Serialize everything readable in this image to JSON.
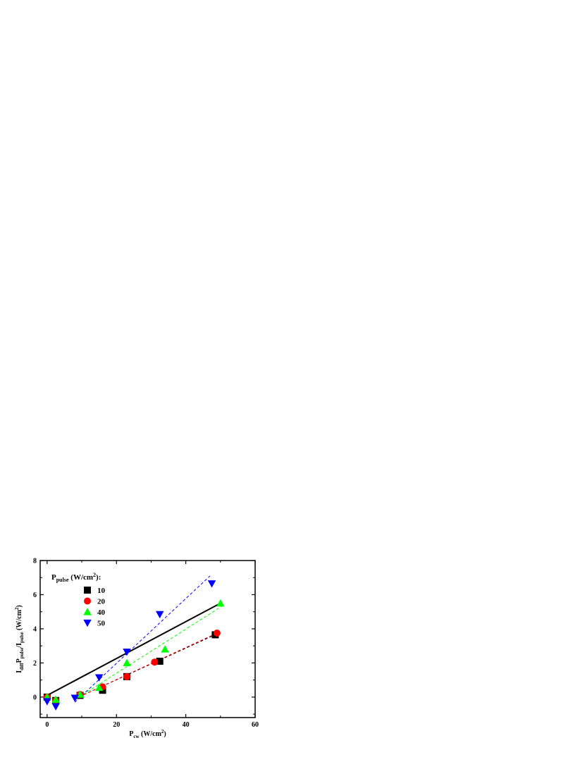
{
  "chart_data": {
    "type": "scatter",
    "xlabel": {
      "main": "P",
      "sub": "cw",
      "unit_prefix": " (W/cm",
      "sup": "2",
      "unit_suffix": ")"
    },
    "ylabel": {
      "p1": "I",
      "s1": "diff",
      "p2": "P",
      "s2": "pulse",
      "p3": "/I",
      "s3": "pulse",
      "p4": " (W/cm",
      "sup": "2",
      "p5": ")"
    },
    "xlim": [
      -2,
      60
    ],
    "ylim": [
      -1.2,
      8
    ],
    "xticks": [
      0,
      20,
      40,
      60
    ],
    "yticks": [
      0,
      2,
      4,
      6,
      8
    ],
    "grid": false,
    "legend_placement": "top-left",
    "legend_title": {
      "main": "P",
      "sub": "pulse",
      "unit_prefix": " (W/cm",
      "sup": "2",
      "unit_suffix": "):"
    },
    "series": [
      {
        "name": "10",
        "marker": "square",
        "color": "#000000",
        "x": [
          0,
          2.5,
          9.5,
          16,
          23,
          32.5,
          48.5
        ],
        "y": [
          0.0,
          -0.2,
          0.1,
          0.4,
          1.2,
          2.1,
          3.65
        ],
        "fit": {
          "x": [
            8,
            49
          ],
          "y": [
            -0.1,
            3.7
          ]
        }
      },
      {
        "name": "20",
        "marker": "circle",
        "color": "#ff0000",
        "x": [
          0,
          2.5,
          9.5,
          16,
          23,
          31,
          49
        ],
        "y": [
          0.0,
          -0.2,
          0.15,
          0.6,
          1.2,
          2.05,
          3.75
        ],
        "fit": {
          "x": [
            8,
            49
          ],
          "y": [
            -0.1,
            3.75
          ]
        }
      },
      {
        "name": "40",
        "marker": "triangle-up",
        "color": "#00ff00",
        "x": [
          0,
          2.5,
          9.5,
          15,
          23,
          34,
          50
        ],
        "y": [
          0.0,
          -0.15,
          0.15,
          0.55,
          2.0,
          2.8,
          5.5
        ],
        "fit": {
          "x": [
            8,
            51
          ],
          "y": [
            -0.15,
            5.4
          ]
        }
      },
      {
        "name": "50",
        "marker": "triangle-down",
        "color": "#0000ff",
        "x": [
          0,
          2.5,
          8,
          15,
          23,
          32.5,
          47.5
        ],
        "y": [
          -0.25,
          -0.55,
          -0.05,
          1.15,
          2.65,
          4.85,
          6.65
        ],
        "fit": {
          "x": [
            8,
            47
          ],
          "y": [
            -0.3,
            7.1
          ]
        }
      }
    ],
    "reference_line": {
      "color": "#000000",
      "x": [
        0,
        50
      ],
      "y": [
        0.1,
        5.5
      ]
    }
  }
}
